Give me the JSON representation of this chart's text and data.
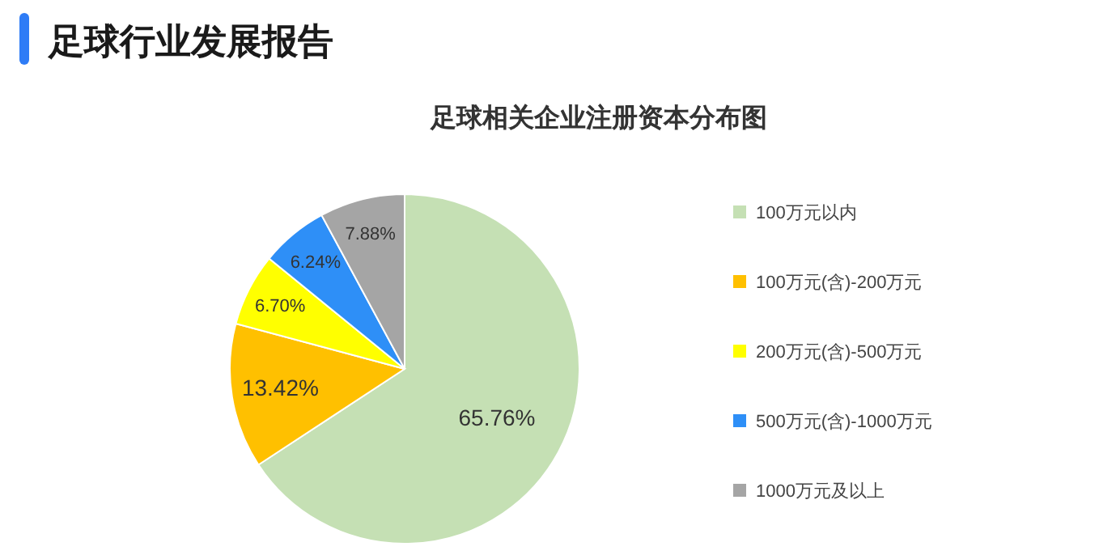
{
  "chart_data": {
    "type": "pie",
    "title": "足球相关企业注册资本分布图",
    "annotations": [
      "足球行业发展报告"
    ],
    "categories": [
      "100万元以内",
      "100万元(含)-200万元",
      "200万元(含)-500万元",
      "500万元(含)-1000万元",
      "1000万元及以上"
    ],
    "values": [
      65.76,
      13.42,
      6.7,
      6.24,
      7.88
    ],
    "value_labels": [
      "65.76%",
      "13.42%",
      "6.70%",
      "6.24%",
      "7.88%"
    ],
    "colors": [
      "#c5e0b4",
      "#ffc000",
      "#ffff00",
      "#2e8ff7",
      "#a5a5a5"
    ],
    "legend": "right"
  }
}
